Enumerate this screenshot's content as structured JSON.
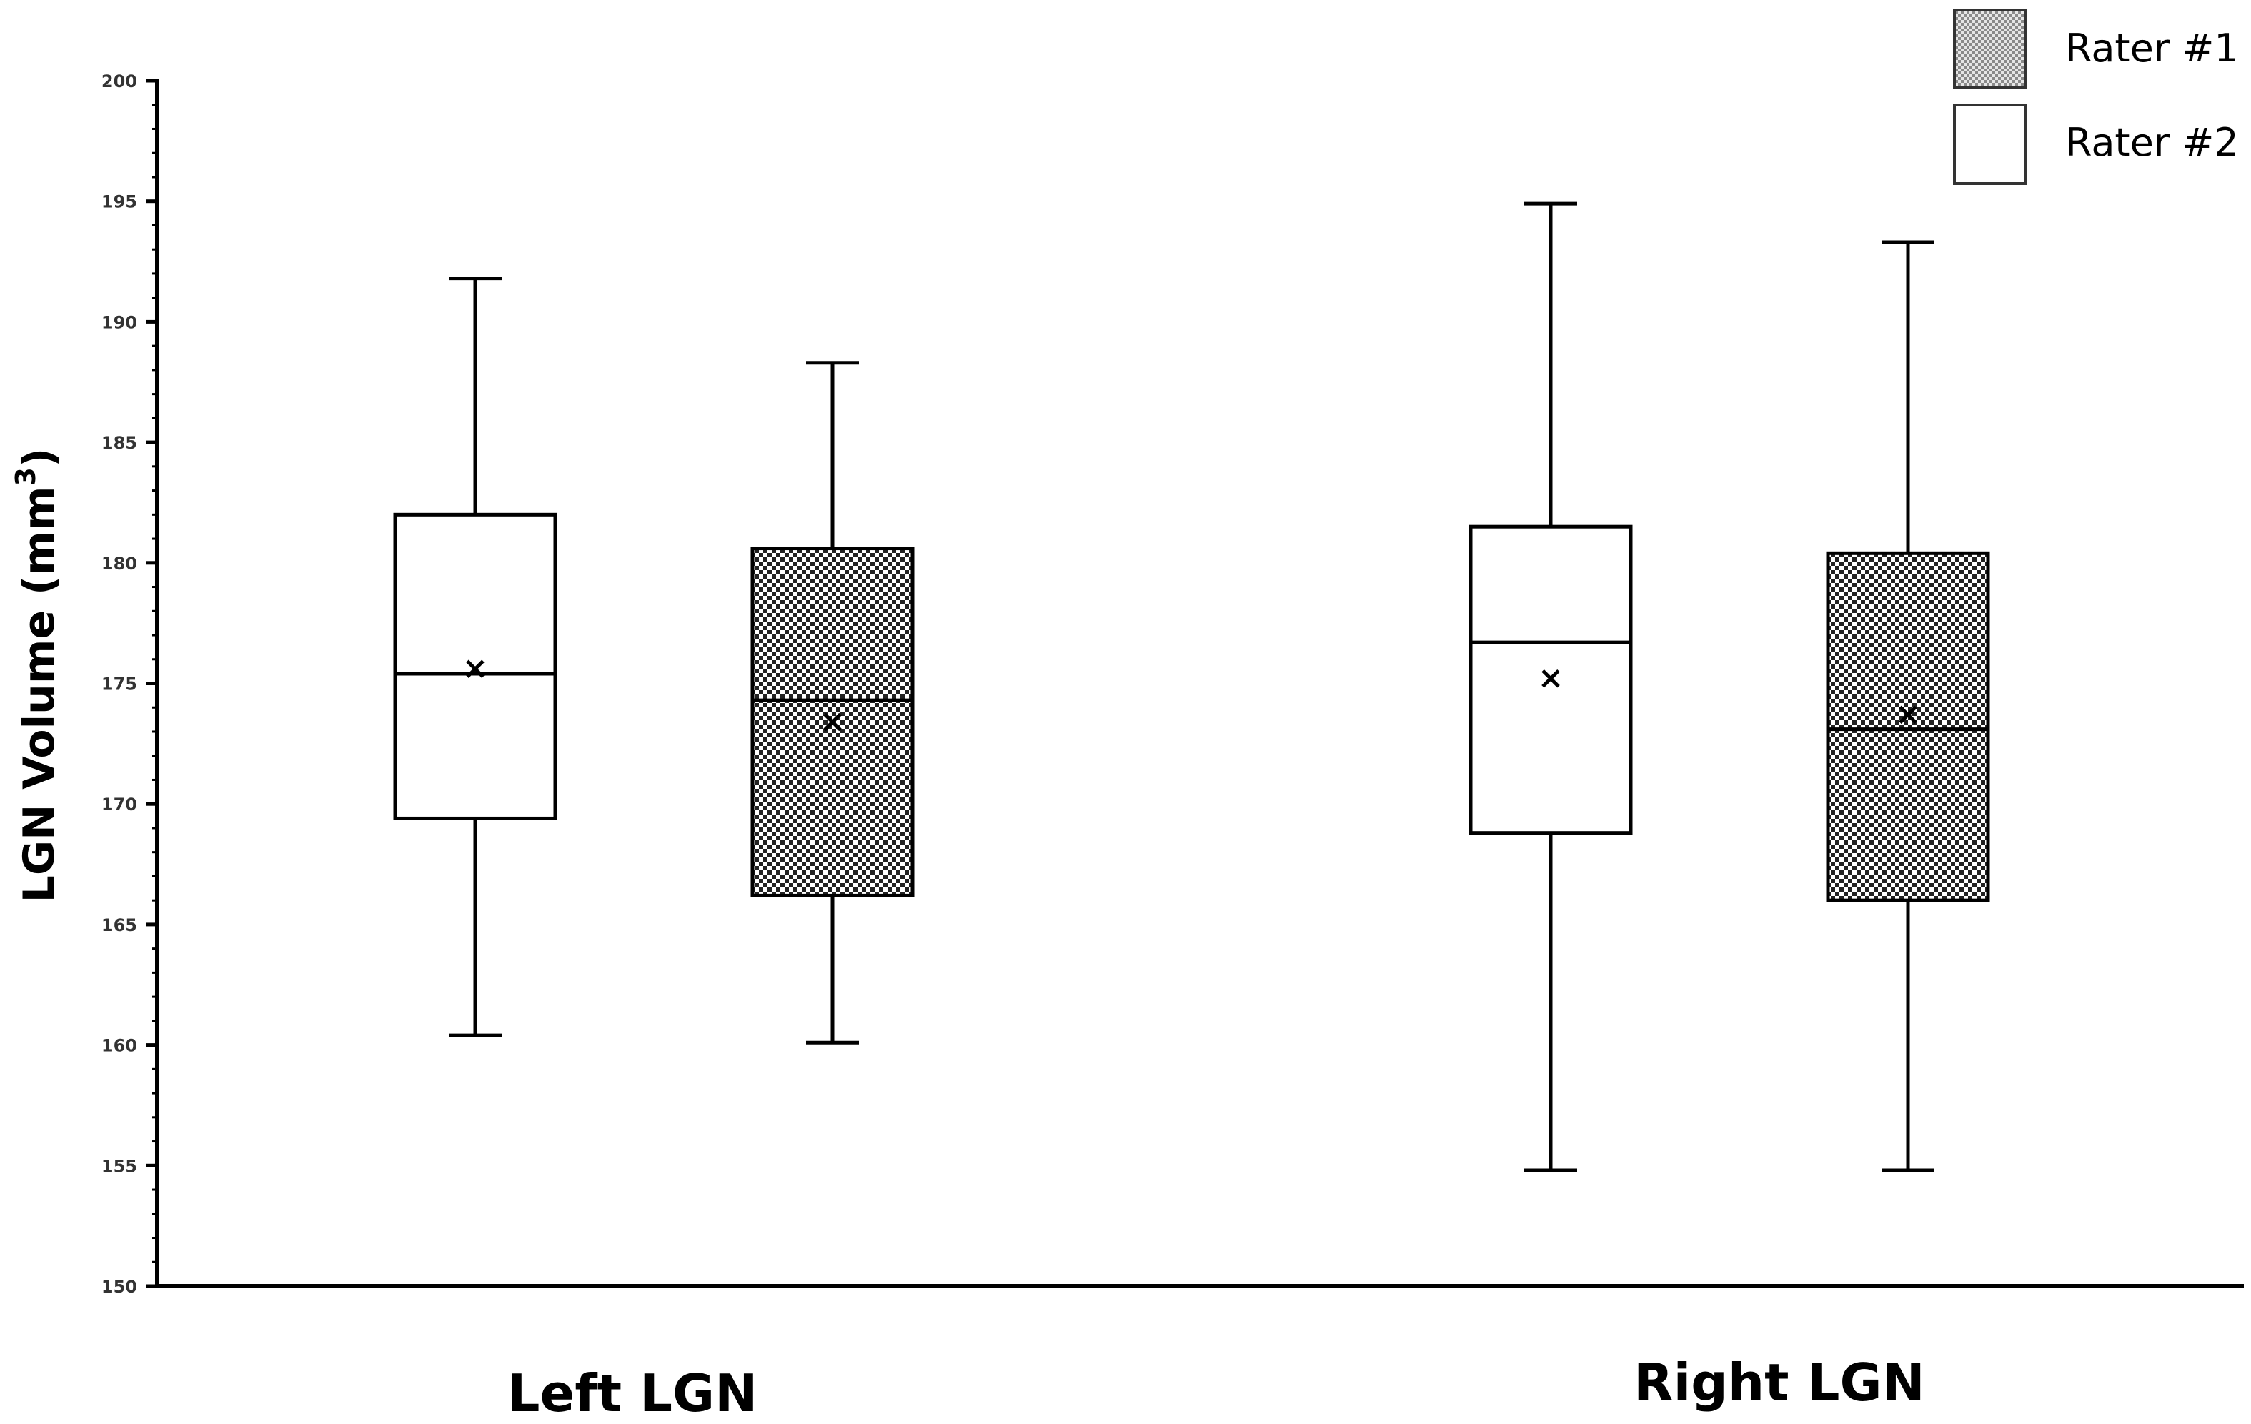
{
  "chart_data": {
    "type": "box",
    "ylabel": "LGN Volume (mm",
    "ylabel_sup": "3",
    "ylabel_close": ")",
    "ylim": [
      150,
      200
    ],
    "y_ticks": [
      150,
      155,
      160,
      165,
      170,
      175,
      180,
      185,
      190,
      195,
      200
    ],
    "categories": [
      "Left LGN",
      "Right LGN"
    ],
    "legend_position": "top-right",
    "legend": [
      {
        "label": "Rater #1",
        "pattern": "checker"
      },
      {
        "label": "Rater #2",
        "pattern": "white"
      }
    ],
    "boxes": [
      {
        "category": "Left LGN",
        "series": "Rater #2",
        "pattern": "white",
        "min": 160.4,
        "q1": 169.4,
        "median": 175.4,
        "q3": 182.0,
        "max": 191.8,
        "mean": 175.6
      },
      {
        "category": "Left LGN",
        "series": "Rater #1",
        "pattern": "checker",
        "min": 160.1,
        "q1": 166.2,
        "median": 174.3,
        "q3": 180.6,
        "max": 188.3,
        "mean": 173.4
      },
      {
        "category": "Right LGN",
        "series": "Rater #2",
        "pattern": "white",
        "min": 154.8,
        "q1": 168.8,
        "median": 176.7,
        "q3": 181.5,
        "max": 194.9,
        "mean": 175.2
      },
      {
        "category": "Right LGN",
        "series": "Rater #1",
        "pattern": "checker",
        "min": 154.8,
        "q1": 166.0,
        "median": 173.1,
        "q3": 180.4,
        "max": 193.3,
        "mean": 173.7
      }
    ]
  }
}
